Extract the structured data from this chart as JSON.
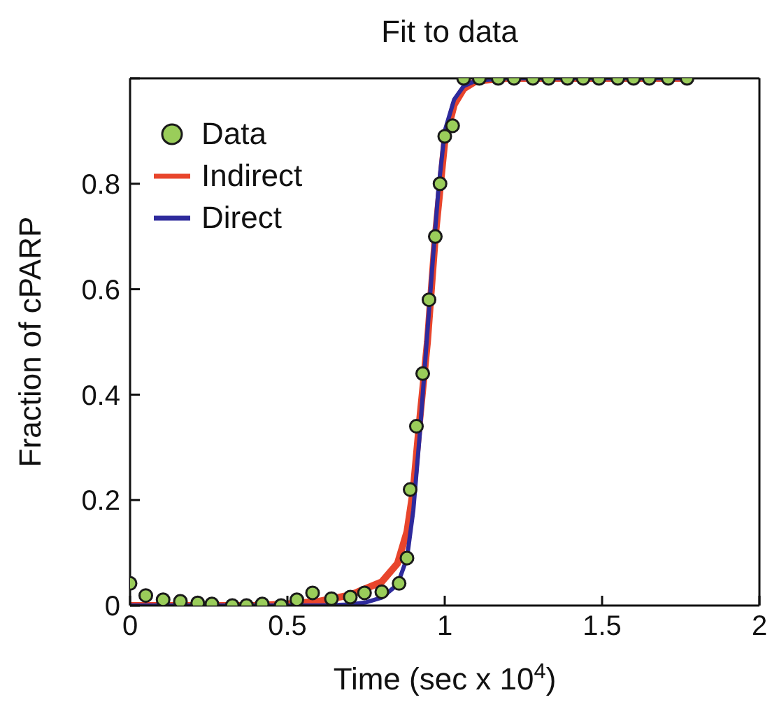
{
  "chart_data": {
    "type": "line",
    "title": "Fit to data",
    "xlabel": "Time (sec x 10$^{4}$)",
    "ylabel": "Fraction of cPARP",
    "xlim": [
      0,
      2
    ],
    "xticks": [
      0,
      0.5,
      1,
      1.5,
      2
    ],
    "ylim": [
      0,
      1
    ],
    "yticks": [
      0,
      0.2,
      0.4,
      0.6,
      0.8,
      {
        "value": 1,
        "label": null
      }
    ],
    "grid": false,
    "legend": "top left",
    "series": [
      {
        "name": "Data",
        "type": "scatter",
        "marker": "circle",
        "color": "#9acd5a",
        "x": [
          0,
          0.05,
          0.105,
          0.16,
          0.215,
          0.26,
          0.325,
          0.37,
          0.42,
          0.48,
          0.53,
          0.58,
          0.64,
          0.7,
          0.745,
          0.8,
          0.855,
          0.88,
          0.89,
          0.91,
          0.93,
          0.95,
          0.97,
          0.985,
          1.0,
          1.025,
          1.06,
          1.11,
          1.17,
          1.22,
          1.28,
          1.33,
          1.39,
          1.44,
          1.49,
          1.55,
          1.6,
          1.65,
          1.71,
          1.77
        ],
        "values": [
          0.042,
          0.019,
          0.011,
          0.008,
          0.005,
          0.003,
          0,
          0,
          0.003,
          0,
          0.011,
          0.024,
          0.013,
          0.016,
          0.024,
          0.026,
          0.042,
          0.09,
          0.22,
          0.34,
          0.44,
          0.58,
          0.7,
          0.8,
          0.89,
          0.91,
          1,
          1,
          1,
          1,
          1,
          1,
          1,
          1,
          1,
          1,
          1,
          1,
          1,
          1
        ]
      },
      {
        "name": "Indirect",
        "color": "#e8452c",
        "x": [
          0,
          0.4,
          0.5,
          0.6,
          0.7,
          0.8,
          0.85,
          0.88,
          0.9,
          0.92,
          0.945,
          0.97,
          1.0,
          1.03,
          1.06,
          1.1,
          1.2,
          1.77
        ],
        "values": [
          0,
          0,
          0.003,
          0.008,
          0.02,
          0.045,
          0.08,
          0.14,
          0.22,
          0.35,
          0.5,
          0.7,
          0.88,
          0.95,
          0.98,
          0.995,
          1,
          1
        ]
      },
      {
        "name": "Direct",
        "color": "#2e2a9c",
        "x": [
          0,
          0.6,
          0.7,
          0.75,
          0.8,
          0.85,
          0.88,
          0.9,
          0.92,
          0.94,
          0.96,
          0.98,
          1.0,
          1.03,
          1.06,
          1.1,
          1.2,
          1.77
        ],
        "values": [
          0,
          0,
          0.002,
          0.006,
          0.015,
          0.04,
          0.09,
          0.18,
          0.32,
          0.48,
          0.64,
          0.79,
          0.9,
          0.96,
          0.985,
          0.996,
          1,
          1
        ]
      }
    ]
  }
}
